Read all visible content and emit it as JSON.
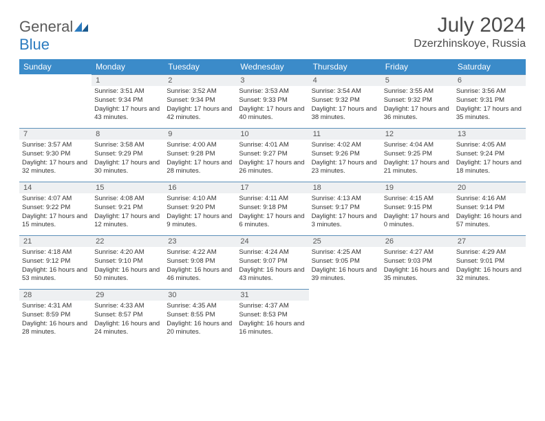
{
  "logo": {
    "text1": "General",
    "text2": "Blue"
  },
  "title": "July 2024",
  "location": "Dzerzhinskoye, Russia",
  "colors": {
    "header_bg": "#3b8bc9",
    "header_text": "#ffffff",
    "daynum_bg": "#eef0f2",
    "cell_border": "#5a8fb8",
    "logo_gray": "#5a5a5a",
    "logo_blue": "#2b7bbf"
  },
  "weekdays": [
    "Sunday",
    "Monday",
    "Tuesday",
    "Wednesday",
    "Thursday",
    "Friday",
    "Saturday"
  ],
  "weeks": [
    [
      null,
      {
        "n": "1",
        "sr": "Sunrise: 3:51 AM",
        "ss": "Sunset: 9:34 PM",
        "dl": "Daylight: 17 hours and 43 minutes."
      },
      {
        "n": "2",
        "sr": "Sunrise: 3:52 AM",
        "ss": "Sunset: 9:34 PM",
        "dl": "Daylight: 17 hours and 42 minutes."
      },
      {
        "n": "3",
        "sr": "Sunrise: 3:53 AM",
        "ss": "Sunset: 9:33 PM",
        "dl": "Daylight: 17 hours and 40 minutes."
      },
      {
        "n": "4",
        "sr": "Sunrise: 3:54 AM",
        "ss": "Sunset: 9:32 PM",
        "dl": "Daylight: 17 hours and 38 minutes."
      },
      {
        "n": "5",
        "sr": "Sunrise: 3:55 AM",
        "ss": "Sunset: 9:32 PM",
        "dl": "Daylight: 17 hours and 36 minutes."
      },
      {
        "n": "6",
        "sr": "Sunrise: 3:56 AM",
        "ss": "Sunset: 9:31 PM",
        "dl": "Daylight: 17 hours and 35 minutes."
      }
    ],
    [
      {
        "n": "7",
        "sr": "Sunrise: 3:57 AM",
        "ss": "Sunset: 9:30 PM",
        "dl": "Daylight: 17 hours and 32 minutes."
      },
      {
        "n": "8",
        "sr": "Sunrise: 3:58 AM",
        "ss": "Sunset: 9:29 PM",
        "dl": "Daylight: 17 hours and 30 minutes."
      },
      {
        "n": "9",
        "sr": "Sunrise: 4:00 AM",
        "ss": "Sunset: 9:28 PM",
        "dl": "Daylight: 17 hours and 28 minutes."
      },
      {
        "n": "10",
        "sr": "Sunrise: 4:01 AM",
        "ss": "Sunset: 9:27 PM",
        "dl": "Daylight: 17 hours and 26 minutes."
      },
      {
        "n": "11",
        "sr": "Sunrise: 4:02 AM",
        "ss": "Sunset: 9:26 PM",
        "dl": "Daylight: 17 hours and 23 minutes."
      },
      {
        "n": "12",
        "sr": "Sunrise: 4:04 AM",
        "ss": "Sunset: 9:25 PM",
        "dl": "Daylight: 17 hours and 21 minutes."
      },
      {
        "n": "13",
        "sr": "Sunrise: 4:05 AM",
        "ss": "Sunset: 9:24 PM",
        "dl": "Daylight: 17 hours and 18 minutes."
      }
    ],
    [
      {
        "n": "14",
        "sr": "Sunrise: 4:07 AM",
        "ss": "Sunset: 9:22 PM",
        "dl": "Daylight: 17 hours and 15 minutes."
      },
      {
        "n": "15",
        "sr": "Sunrise: 4:08 AM",
        "ss": "Sunset: 9:21 PM",
        "dl": "Daylight: 17 hours and 12 minutes."
      },
      {
        "n": "16",
        "sr": "Sunrise: 4:10 AM",
        "ss": "Sunset: 9:20 PM",
        "dl": "Daylight: 17 hours and 9 minutes."
      },
      {
        "n": "17",
        "sr": "Sunrise: 4:11 AM",
        "ss": "Sunset: 9:18 PM",
        "dl": "Daylight: 17 hours and 6 minutes."
      },
      {
        "n": "18",
        "sr": "Sunrise: 4:13 AM",
        "ss": "Sunset: 9:17 PM",
        "dl": "Daylight: 17 hours and 3 minutes."
      },
      {
        "n": "19",
        "sr": "Sunrise: 4:15 AM",
        "ss": "Sunset: 9:15 PM",
        "dl": "Daylight: 17 hours and 0 minutes."
      },
      {
        "n": "20",
        "sr": "Sunrise: 4:16 AM",
        "ss": "Sunset: 9:14 PM",
        "dl": "Daylight: 16 hours and 57 minutes."
      }
    ],
    [
      {
        "n": "21",
        "sr": "Sunrise: 4:18 AM",
        "ss": "Sunset: 9:12 PM",
        "dl": "Daylight: 16 hours and 53 minutes."
      },
      {
        "n": "22",
        "sr": "Sunrise: 4:20 AM",
        "ss": "Sunset: 9:10 PM",
        "dl": "Daylight: 16 hours and 50 minutes."
      },
      {
        "n": "23",
        "sr": "Sunrise: 4:22 AM",
        "ss": "Sunset: 9:08 PM",
        "dl": "Daylight: 16 hours and 46 minutes."
      },
      {
        "n": "24",
        "sr": "Sunrise: 4:24 AM",
        "ss": "Sunset: 9:07 PM",
        "dl": "Daylight: 16 hours and 43 minutes."
      },
      {
        "n": "25",
        "sr": "Sunrise: 4:25 AM",
        "ss": "Sunset: 9:05 PM",
        "dl": "Daylight: 16 hours and 39 minutes."
      },
      {
        "n": "26",
        "sr": "Sunrise: 4:27 AM",
        "ss": "Sunset: 9:03 PM",
        "dl": "Daylight: 16 hours and 35 minutes."
      },
      {
        "n": "27",
        "sr": "Sunrise: 4:29 AM",
        "ss": "Sunset: 9:01 PM",
        "dl": "Daylight: 16 hours and 32 minutes."
      }
    ],
    [
      {
        "n": "28",
        "sr": "Sunrise: 4:31 AM",
        "ss": "Sunset: 8:59 PM",
        "dl": "Daylight: 16 hours and 28 minutes."
      },
      {
        "n": "29",
        "sr": "Sunrise: 4:33 AM",
        "ss": "Sunset: 8:57 PM",
        "dl": "Daylight: 16 hours and 24 minutes."
      },
      {
        "n": "30",
        "sr": "Sunrise: 4:35 AM",
        "ss": "Sunset: 8:55 PM",
        "dl": "Daylight: 16 hours and 20 minutes."
      },
      {
        "n": "31",
        "sr": "Sunrise: 4:37 AM",
        "ss": "Sunset: 8:53 PM",
        "dl": "Daylight: 16 hours and 16 minutes."
      },
      null,
      null,
      null
    ]
  ]
}
